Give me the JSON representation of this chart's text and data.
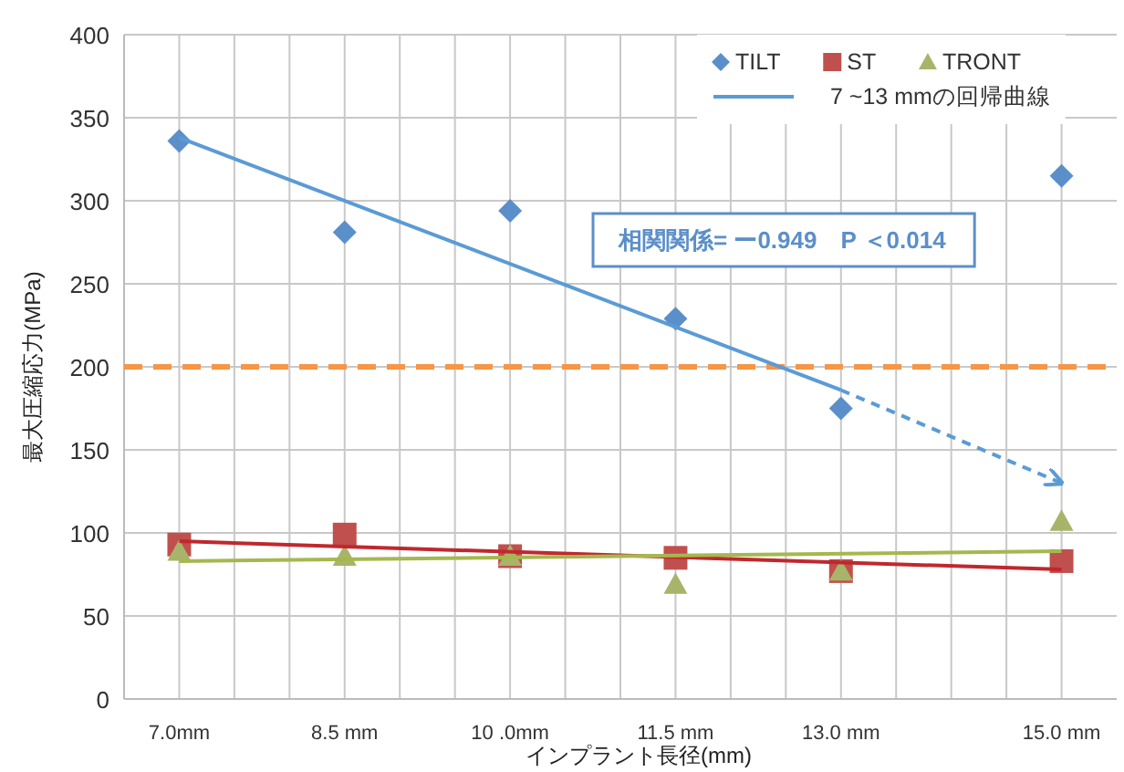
{
  "chart_data": {
    "type": "scatter",
    "xlabel": "インプラント長径(mm)",
    "ylabel": "最大圧縮応力(MPa)",
    "xlim": [
      6.5,
      15.5
    ],
    "ylim": [
      0,
      400
    ],
    "xticks": [
      {
        "value": 7.0,
        "label": "7.0mm"
      },
      {
        "value": 7.5,
        "label": null
      },
      {
        "value": 8.0,
        "label": null
      },
      {
        "value": 8.5,
        "label": "8.5 mm"
      },
      {
        "value": 9.0,
        "label": null
      },
      {
        "value": 9.5,
        "label": null
      },
      {
        "value": 10.0,
        "label": "10 .0mm"
      },
      {
        "value": 10.5,
        "label": null
      },
      {
        "value": 11.0,
        "label": null
      },
      {
        "value": 11.5,
        "label": "11.5 mm"
      },
      {
        "value": 12.0,
        "label": null
      },
      {
        "value": 12.5,
        "label": null
      },
      {
        "value": 13.0,
        "label": "13.0 mm"
      },
      {
        "value": 13.5,
        "label": null
      },
      {
        "value": 14.0,
        "label": null
      },
      {
        "value": 14.5,
        "label": null
      },
      {
        "value": 15.0,
        "label": "15.0 mm"
      }
    ],
    "yticks": [
      0,
      50,
      100,
      150,
      200,
      250,
      300,
      350,
      400
    ],
    "grid": true,
    "legend": "top right",
    "ref_lines": [
      {
        "axis": "y",
        "value": 200,
        "color": "#f79646",
        "line_style": "dashed"
      }
    ],
    "annotations": [
      "相関関係= ー0.949　P ＜0.014"
    ],
    "series": [
      {
        "name": "TILT",
        "marker": "diamond",
        "color": "#5b8fc9",
        "x": [
          7.0,
          8.5,
          10.0,
          11.5,
          13.0,
          15.0
        ],
        "values": [
          336,
          281,
          294,
          229,
          175,
          315
        ]
      },
      {
        "name": "ST",
        "marker": "square",
        "color": "#c0504d",
        "x": [
          7.0,
          8.5,
          10.0,
          11.5,
          13.0,
          15.0
        ],
        "values": [
          93,
          99,
          86,
          85,
          77,
          83
        ]
      },
      {
        "name": "TRONT",
        "marker": "triangle",
        "color": "#a8b46a",
        "x": [
          7.0,
          8.5,
          10.0,
          11.5,
          13.0,
          15.0
        ],
        "values": [
          89,
          86,
          86,
          69,
          77,
          107
        ]
      },
      {
        "name": "7 ~13 mmの回帰曲線",
        "type": "line",
        "line_style": "solid",
        "color": "#5b9bd5",
        "x": [
          7.0,
          13.0
        ],
        "values": [
          338,
          186
        ]
      },
      {
        "type": "line",
        "line_style": "dashed",
        "color": "#5b9bd5",
        "x": [
          13.0,
          15.0
        ],
        "values": [
          186,
          130
        ]
      },
      {
        "type": "line",
        "line_style": "solid",
        "color": "#c0282d",
        "x": [
          7.0,
          15.0
        ],
        "values": [
          95,
          78
        ]
      },
      {
        "type": "line",
        "line_style": "solid",
        "color": "#a5b84f",
        "x": [
          7.0,
          15.0
        ],
        "values": [
          83,
          89
        ]
      }
    ]
  }
}
